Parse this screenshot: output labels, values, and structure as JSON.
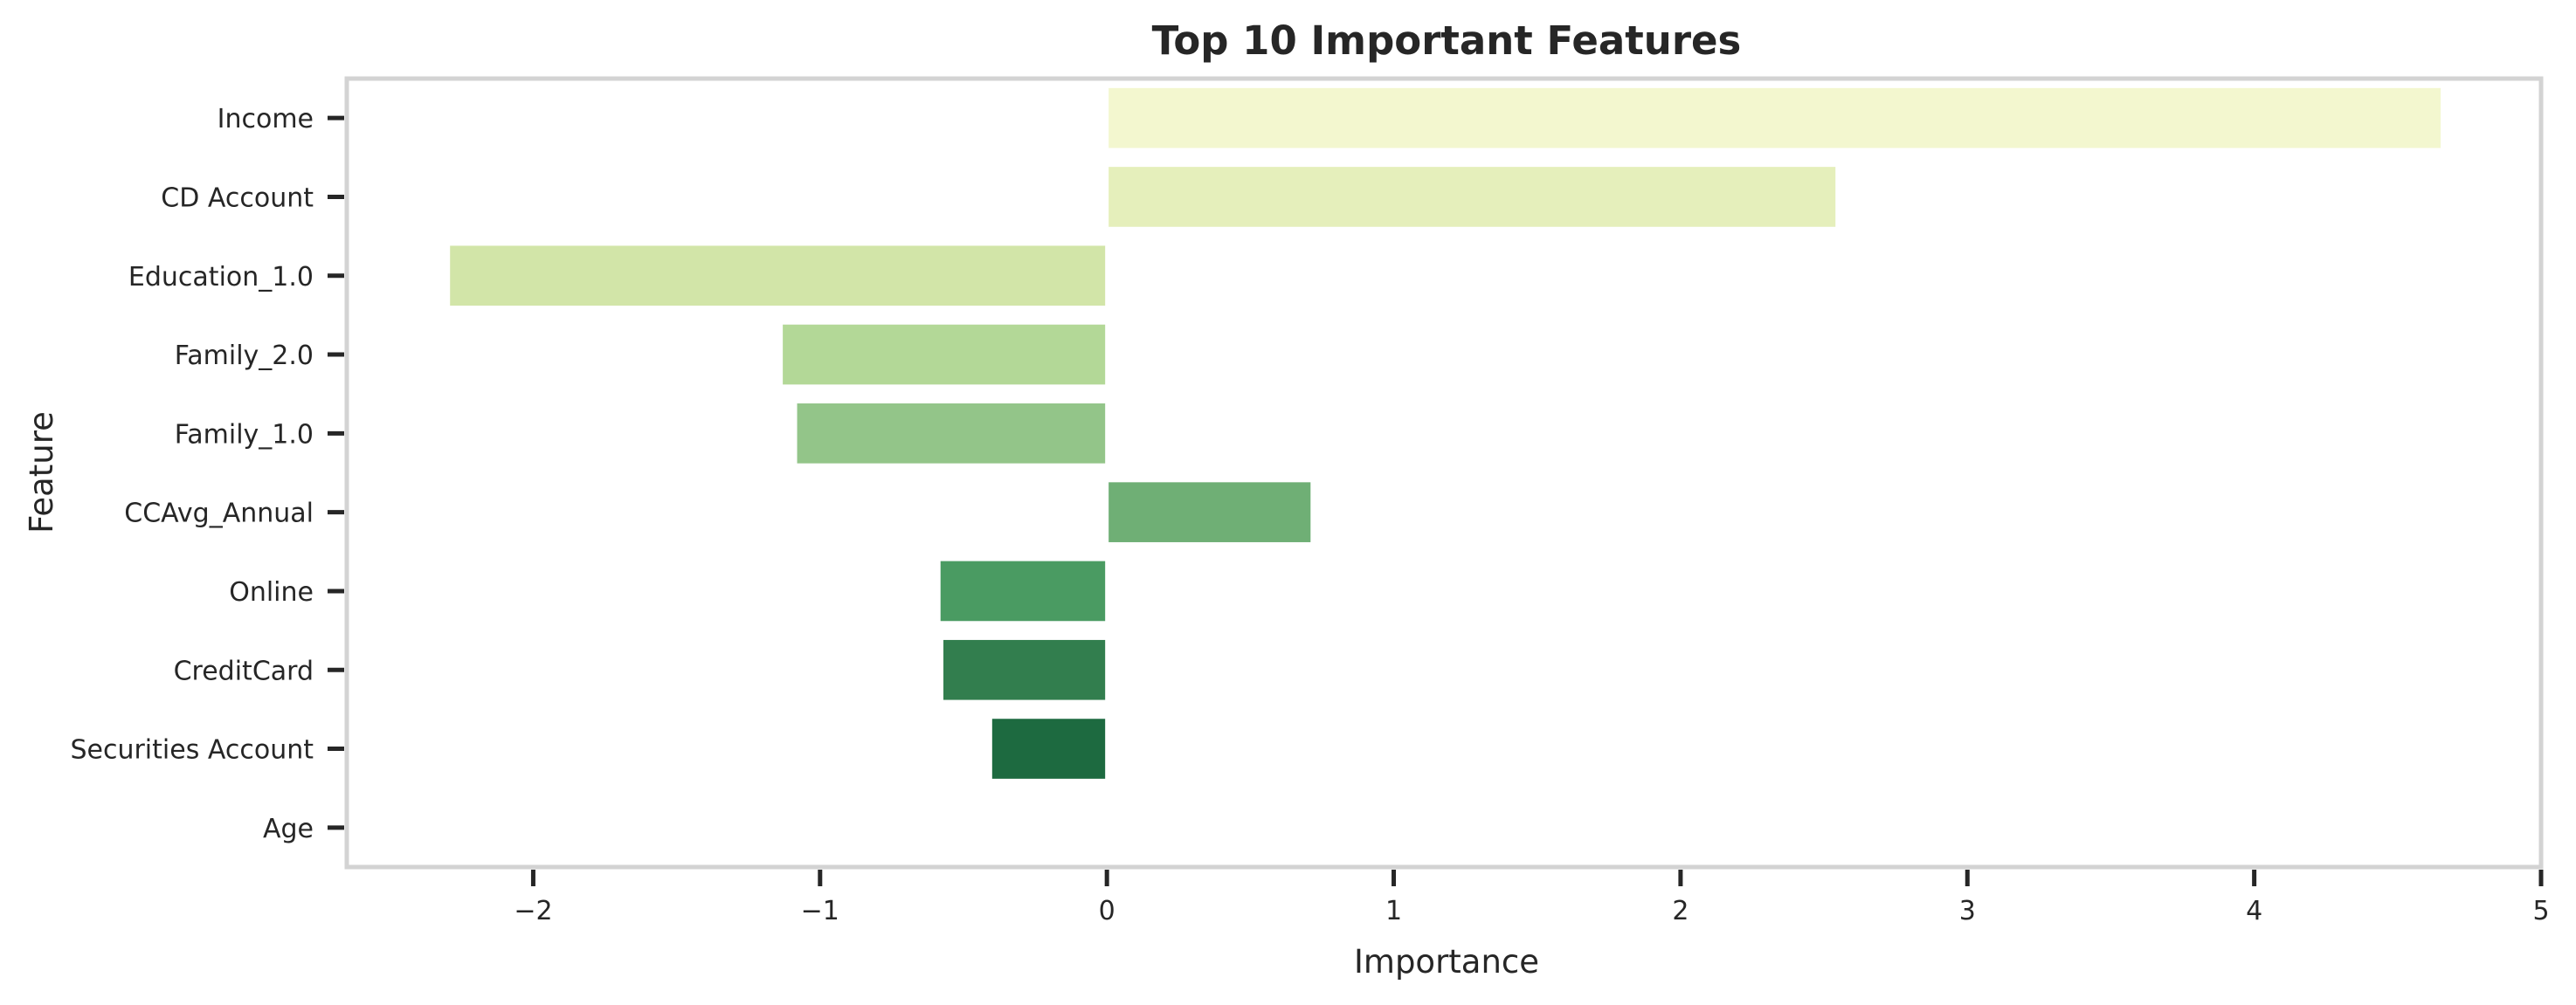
{
  "chart_data": {
    "type": "bar",
    "orientation": "horizontal",
    "title": "Top 10 Important Features",
    "xlabel": "Importance",
    "ylabel": "Feature",
    "xlim": [
      -2.65,
      5
    ],
    "xticks": [
      -2,
      -1,
      0,
      1,
      2,
      3,
      4,
      5
    ],
    "xtick_labels": [
      "−2",
      "−1",
      "0",
      "1",
      "2",
      "3",
      "4",
      "5"
    ],
    "grid": false,
    "legend": "none",
    "categories": [
      "Income",
      "CD Account",
      "Education_1.0",
      "Family_2.0",
      "Family_1.0",
      "CCAvg_Annual",
      "Online",
      "CreditCard",
      "Securities Account",
      "Age"
    ],
    "values": [
      4.65,
      2.54,
      -2.29,
      -1.13,
      -1.08,
      0.71,
      -0.58,
      -0.57,
      -0.4,
      0.0
    ],
    "colors": [
      "#f3f7cf",
      "#e5efbb",
      "#d2e5a8",
      "#b3d897",
      "#93c589",
      "#6faf75",
      "#4a9b62",
      "#327e4e",
      "#1d6a40",
      "#0f5a34"
    ]
  }
}
